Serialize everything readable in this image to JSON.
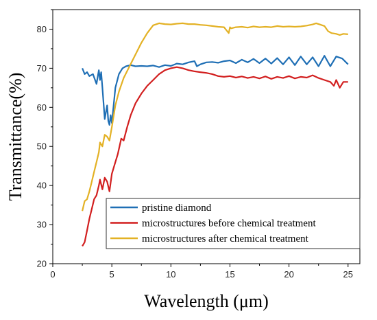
{
  "chart_data": {
    "type": "line",
    "xlabel": "Wavelength (μm)",
    "ylabel": "Transmittance(%)",
    "xlim": [
      0,
      26
    ],
    "ylim": [
      20,
      85
    ],
    "xticks": [
      0,
      5,
      10,
      15,
      20,
      25
    ],
    "yticks": [
      20,
      30,
      40,
      50,
      60,
      70,
      80
    ],
    "legend_position": "bottom-right",
    "grid": false,
    "series": [
      {
        "name": "pristine diamond",
        "color": "#1f6fb5",
        "x": [
          2.5,
          2.7,
          2.9,
          3.1,
          3.4,
          3.7,
          3.9,
          4.0,
          4.1,
          4.2,
          4.4,
          4.6,
          4.7,
          4.8,
          4.9,
          5.0,
          5.1,
          5.3,
          5.6,
          5.9,
          6.2,
          6.6,
          7.0,
          7.5,
          8.0,
          8.5,
          9.0,
          9.5,
          10.0,
          10.5,
          11.0,
          11.5,
          12.0,
          12.2,
          12.5,
          13.0,
          13.5,
          14.0,
          14.5,
          15.0,
          15.5,
          16.0,
          16.5,
          17.0,
          17.5,
          18.0,
          18.5,
          19.0,
          19.5,
          20.0,
          20.5,
          21.0,
          21.5,
          22.0,
          22.5,
          23.0,
          23.5,
          24.0,
          24.5,
          25.0
        ],
        "y": [
          70.0,
          68.5,
          69.0,
          68.0,
          68.5,
          66.0,
          69.5,
          67.0,
          69.0,
          65.0,
          57.0,
          60.5,
          56.5,
          55.5,
          58.0,
          56.0,
          59.0,
          65.0,
          68.5,
          70.0,
          70.5,
          70.8,
          70.5,
          70.6,
          70.5,
          70.7,
          70.3,
          70.8,
          70.6,
          71.2,
          71.0,
          71.5,
          71.8,
          70.5,
          71.0,
          71.5,
          71.6,
          71.4,
          71.8,
          72.0,
          71.3,
          72.2,
          71.5,
          72.4,
          71.3,
          72.5,
          71.2,
          72.6,
          71.0,
          72.8,
          70.8,
          73.0,
          71.0,
          72.8,
          70.5,
          73.2,
          70.5,
          73.0,
          72.5,
          71.0
        ]
      },
      {
        "name": "microstructures before chemical treatment",
        "color": "#d21f1f",
        "x": [
          2.5,
          2.7,
          2.9,
          3.1,
          3.3,
          3.5,
          3.7,
          3.9,
          4.0,
          4.2,
          4.4,
          4.6,
          4.8,
          5.0,
          5.2,
          5.5,
          5.8,
          6.0,
          6.3,
          6.6,
          7.0,
          7.5,
          8.0,
          8.5,
          9.0,
          9.5,
          10.0,
          10.5,
          11.0,
          11.5,
          12.0,
          12.5,
          13.0,
          13.5,
          14.0,
          14.5,
          15.0,
          15.5,
          16.0,
          16.5,
          17.0,
          17.5,
          18.0,
          18.5,
          19.0,
          19.5,
          20.0,
          20.5,
          21.0,
          21.5,
          22.0,
          22.5,
          23.0,
          23.5,
          23.8,
          24.0,
          24.3,
          24.6,
          25.0
        ],
        "y": [
          24.5,
          25.5,
          28.5,
          31.5,
          34.0,
          36.5,
          37.5,
          40.0,
          41.5,
          39.0,
          42.0,
          41.0,
          38.5,
          43.0,
          45.0,
          48.0,
          52.0,
          51.5,
          55.0,
          58.0,
          61.0,
          63.5,
          65.5,
          67.0,
          68.5,
          69.5,
          70.0,
          70.3,
          70.0,
          69.5,
          69.2,
          69.0,
          68.8,
          68.5,
          68.0,
          67.8,
          68.0,
          67.6,
          67.9,
          67.5,
          67.8,
          67.4,
          67.9,
          67.3,
          67.8,
          67.5,
          68.0,
          67.4,
          67.8,
          67.6,
          68.2,
          67.5,
          67.0,
          66.5,
          65.5,
          67.0,
          65.0,
          66.5,
          66.5
        ]
      },
      {
        "name": "microstructures after chemical treatment",
        "color": "#e3b124",
        "x": [
          2.5,
          2.7,
          2.9,
          3.1,
          3.3,
          3.5,
          3.7,
          3.9,
          4.0,
          4.2,
          4.4,
          4.6,
          4.8,
          5.0,
          5.3,
          5.6,
          6.0,
          6.5,
          7.0,
          7.5,
          8.0,
          8.5,
          9.0,
          9.5,
          10.0,
          10.5,
          11.0,
          11.5,
          12.0,
          12.5,
          13.0,
          13.5,
          14.0,
          14.5,
          14.9,
          15.0,
          15.1,
          15.5,
          16.0,
          16.5,
          17.0,
          17.5,
          18.0,
          18.5,
          19.0,
          19.5,
          20.0,
          20.5,
          21.0,
          21.5,
          22.0,
          22.3,
          22.6,
          23.0,
          23.3,
          23.6,
          24.0,
          24.3,
          24.6,
          25.0
        ],
        "y": [
          33.5,
          36.0,
          36.5,
          38.5,
          41.0,
          43.5,
          46.0,
          48.5,
          51.0,
          50.0,
          53.0,
          52.5,
          51.5,
          55.0,
          60.5,
          64.0,
          67.5,
          70.5,
          73.5,
          76.5,
          79.0,
          81.0,
          81.5,
          81.3,
          81.2,
          81.4,
          81.5,
          81.3,
          81.3,
          81.1,
          81.0,
          80.8,
          80.6,
          80.5,
          79.0,
          80.5,
          80.2,
          80.5,
          80.6,
          80.4,
          80.7,
          80.5,
          80.6,
          80.5,
          80.8,
          80.6,
          80.7,
          80.6,
          80.7,
          80.9,
          81.2,
          81.5,
          81.2,
          80.8,
          79.5,
          79.0,
          78.8,
          78.5,
          78.8,
          78.7
        ]
      }
    ]
  }
}
